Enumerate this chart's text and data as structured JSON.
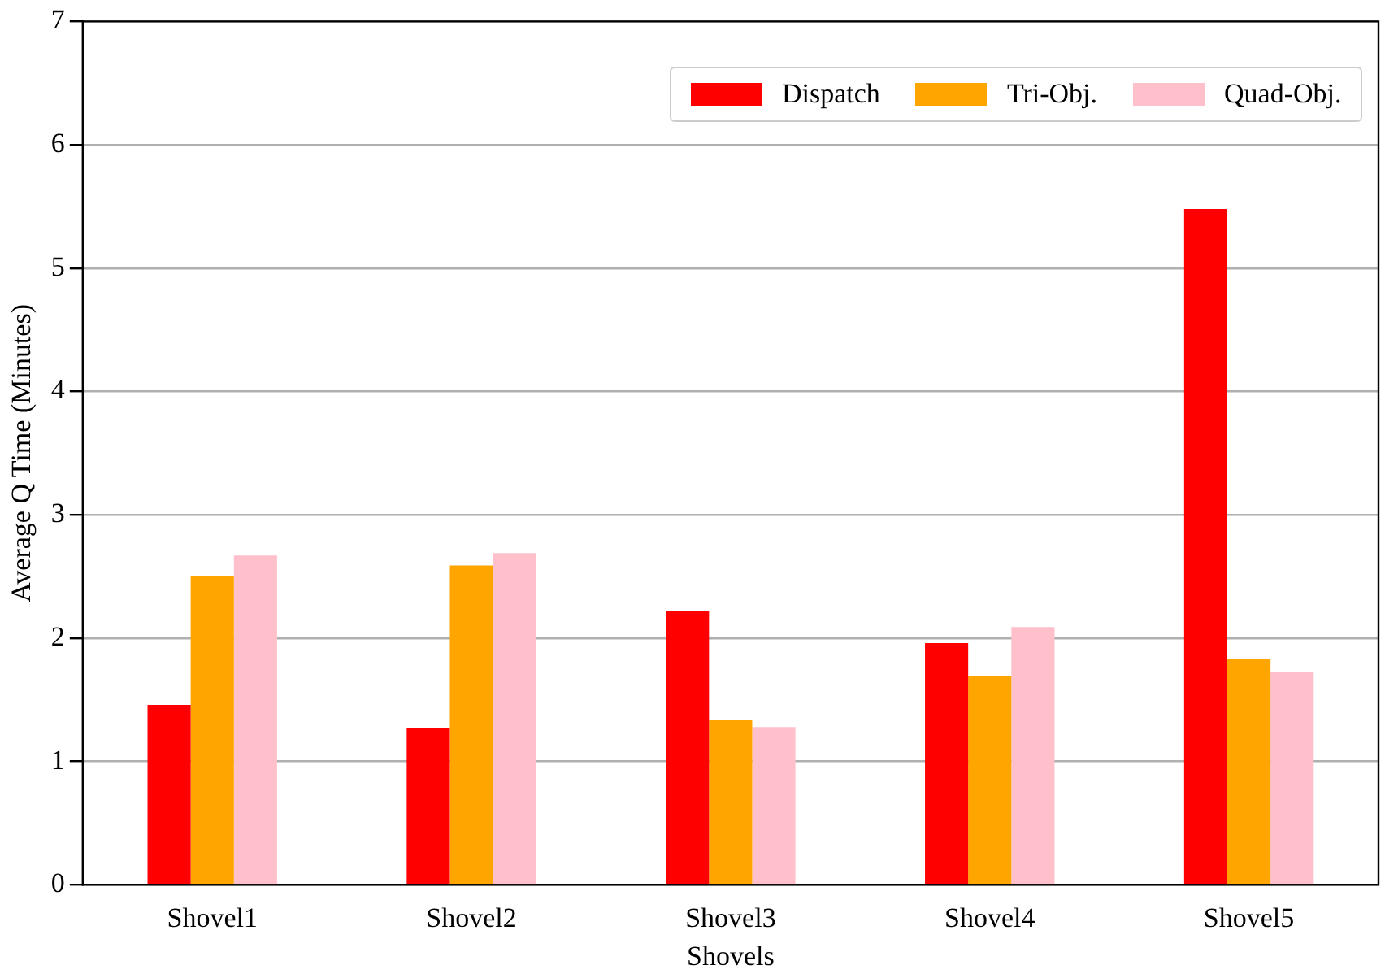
{
  "chart_data": {
    "type": "bar",
    "xlabel": "Shovels",
    "ylabel": "Average Q Time (Minutes)",
    "categories": [
      "Shovel1",
      "Shovel2",
      "Shovel3",
      "Shovel4",
      "Shovel5"
    ],
    "series": [
      {
        "name": "Dispatch",
        "color": "#ff0000",
        "values": [
          1.46,
          1.27,
          2.22,
          1.96,
          5.48
        ]
      },
      {
        "name": "Tri-Obj.",
        "color": "#ffa500",
        "values": [
          2.5,
          2.59,
          1.34,
          1.69,
          1.83
        ]
      },
      {
        "name": "Quad-Obj.",
        "color": "#ffc0cb",
        "values": [
          2.67,
          2.69,
          1.28,
          2.09,
          1.73
        ]
      }
    ],
    "ylim": [
      0,
      7
    ],
    "yticks": [
      0,
      1,
      2,
      3,
      4,
      5,
      6,
      7
    ],
    "grid": "y",
    "legend": "top right"
  }
}
